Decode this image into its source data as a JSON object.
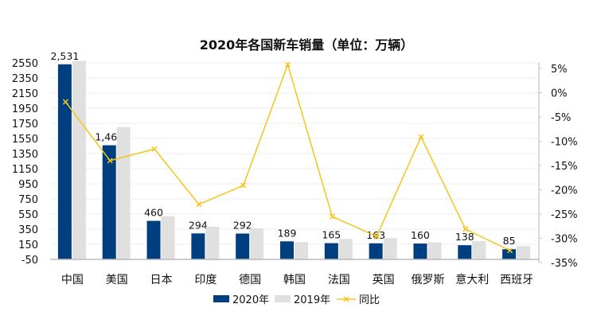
{
  "chart_data": {
    "type": "bar",
    "title": "2020年各国新车销量（单位：万辆）",
    "categories": [
      "中国",
      "美国",
      "日本",
      "印度",
      "德国",
      "韩国",
      "法国",
      "英国",
      "俄罗斯",
      "意大利",
      "西班牙"
    ],
    "series": [
      {
        "name": "2020年",
        "type": "bar",
        "axis": "left",
        "color": "#003f7f",
        "values": [
          2531,
          1460,
          460,
          294,
          292,
          189,
          165,
          163,
          160,
          138,
          85
        ],
        "labels": [
          "2,531",
          "1,460",
          "460",
          "294",
          "292",
          "189",
          "165",
          "163",
          "160",
          "138",
          "85"
        ]
      },
      {
        "name": "2019年",
        "type": "bar",
        "axis": "left",
        "color": "#e0e0e0",
        "values": [
          2577,
          1700,
          520,
          382,
          361,
          179,
          221,
          232,
          176,
          192,
          126
        ]
      },
      {
        "name": "同比",
        "type": "line",
        "axis": "right",
        "color": "#f5c518",
        "values": [
          -1.9,
          -14.0,
          -11.6,
          -23.0,
          -19.1,
          5.8,
          -25.5,
          -29.6,
          -9.1,
          -28.1,
          -32.5
        ]
      }
    ],
    "ylim_left": [
      -50,
      2550
    ],
    "yticks_left": [
      "2550",
      "2350",
      "2150",
      "1950",
      "1750",
      "1550",
      "1350",
      "1150",
      "950",
      "750",
      "550",
      "350",
      "150",
      "-50"
    ],
    "ylim_right": [
      -35,
      5
    ],
    "yticks_right": [
      "5%",
      "0%",
      "-5%",
      "-10%",
      "-15%",
      "-20%",
      "-25%",
      "-30%",
      "-35%"
    ],
    "legend_position": "bottom",
    "grid": true
  }
}
